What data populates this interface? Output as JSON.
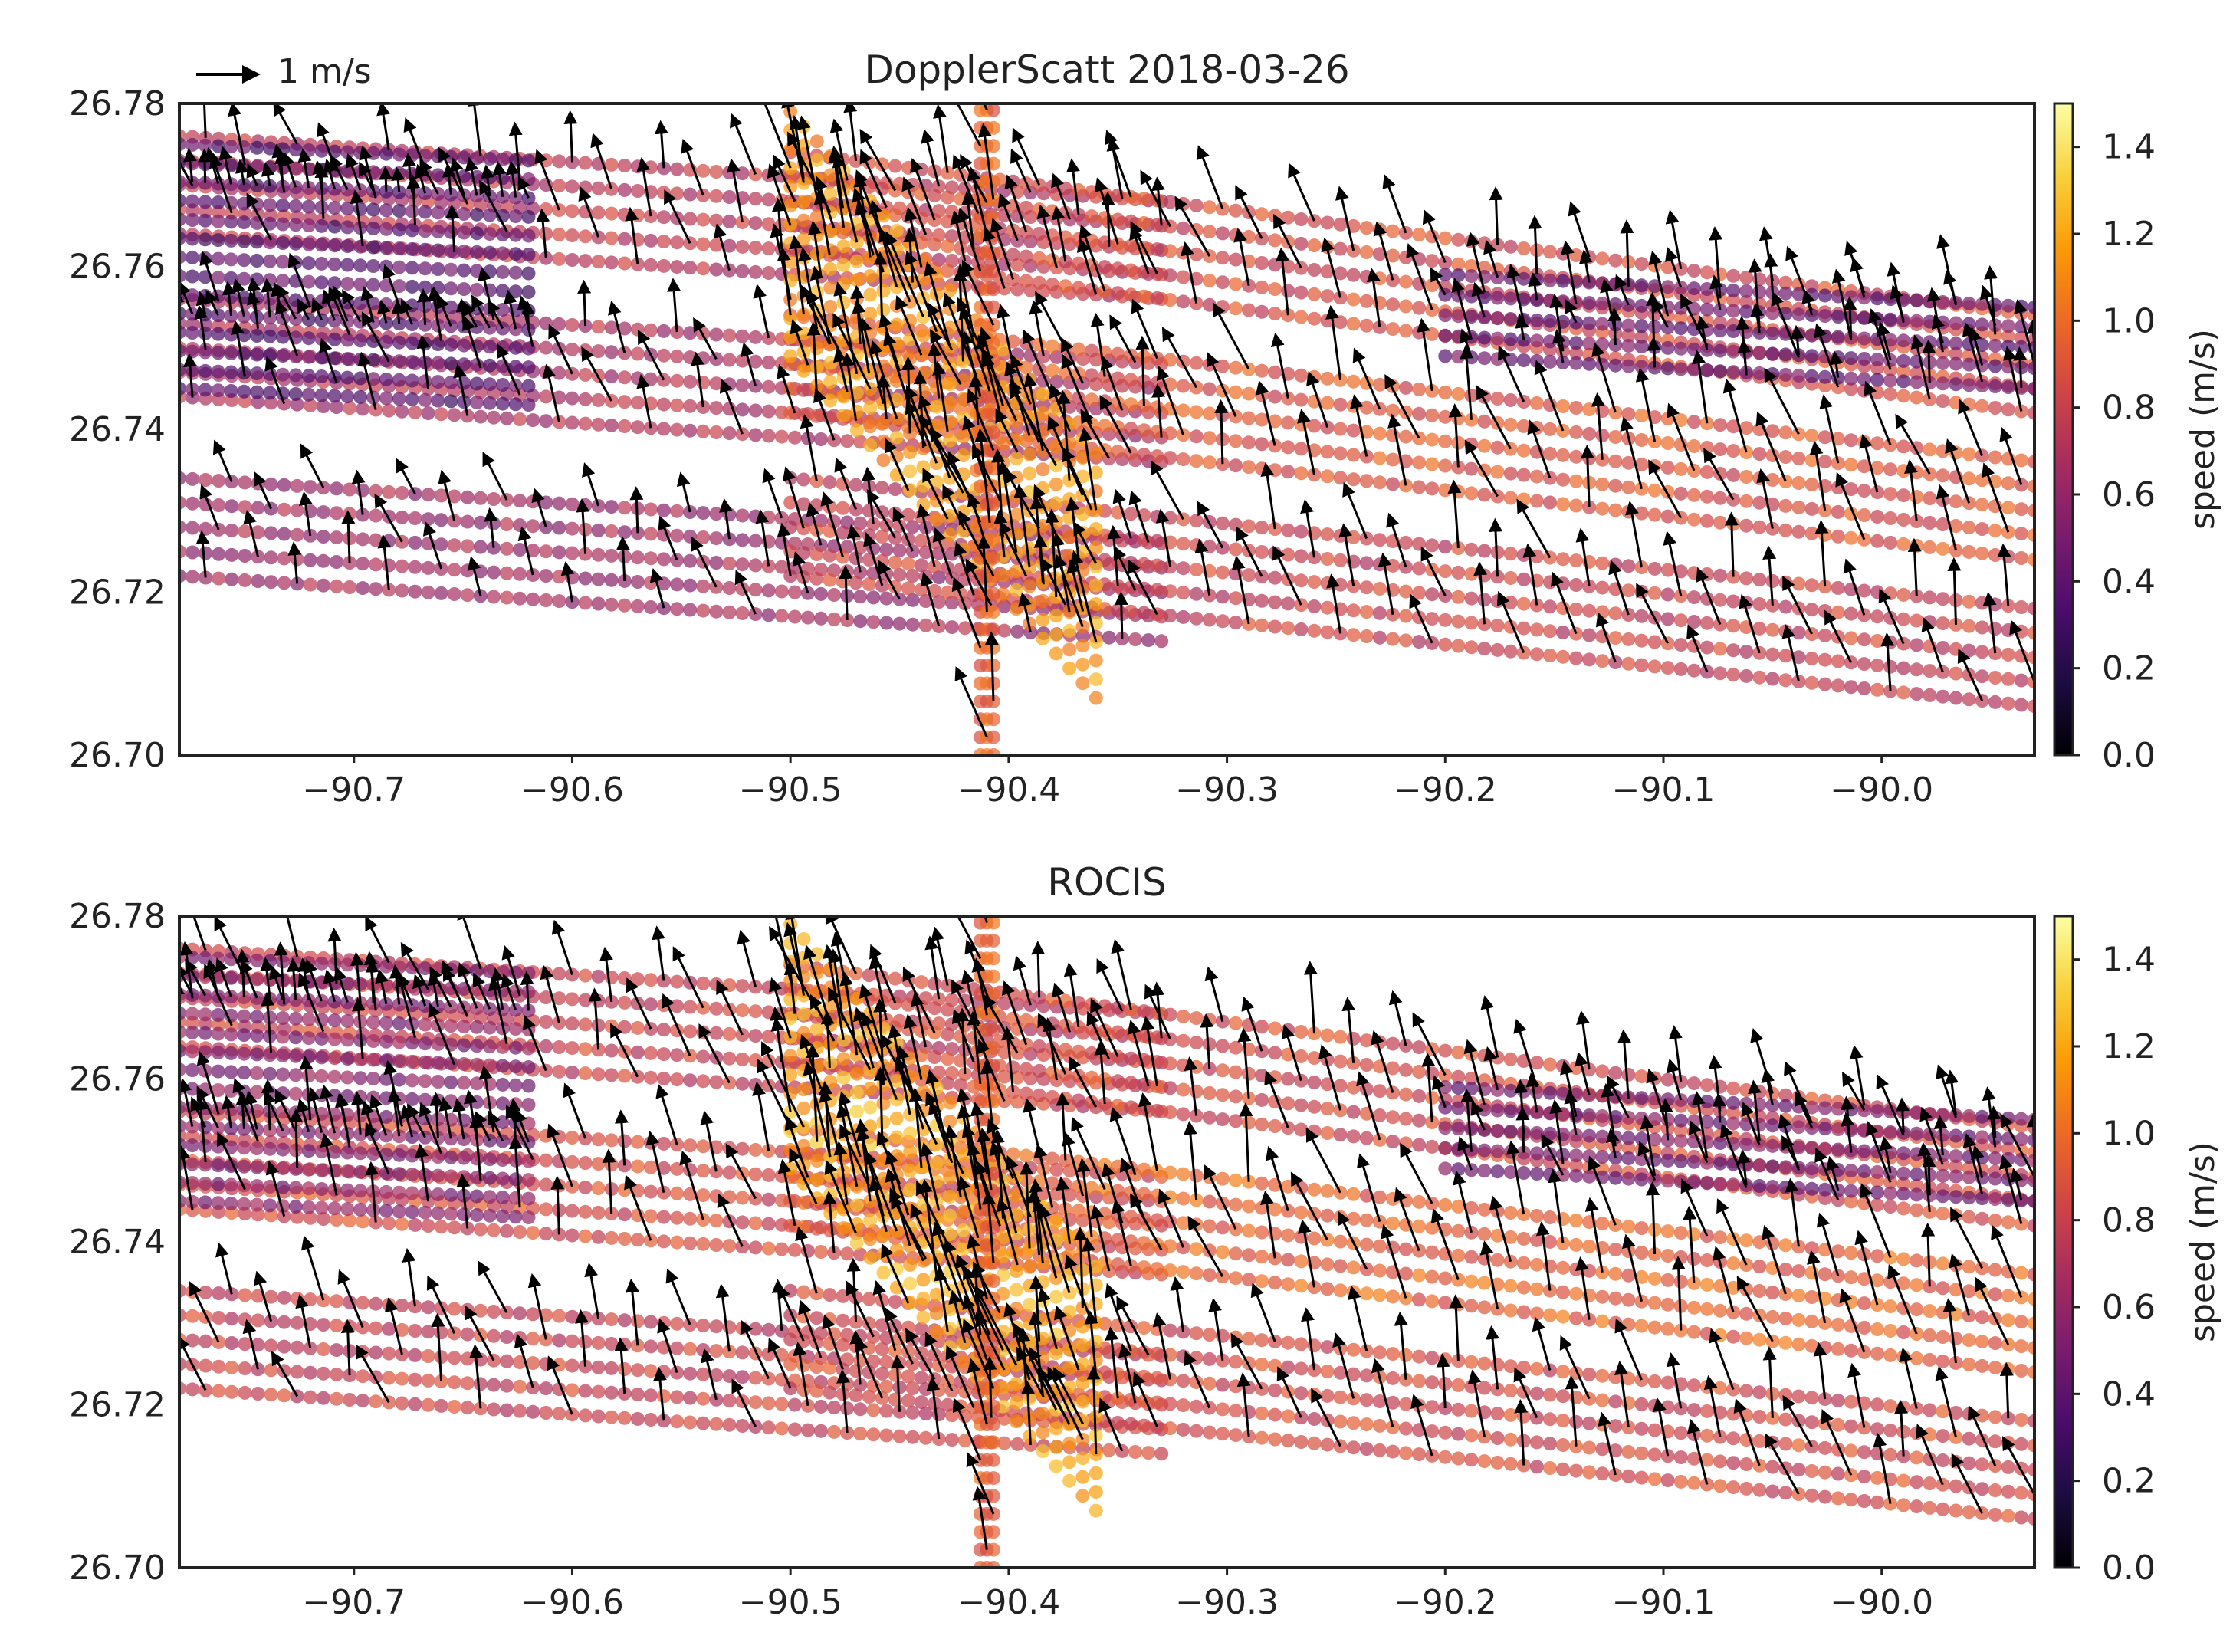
{
  "figure": {
    "quiver_key_label": "1 m/s",
    "colormap_stops": [
      "#000004",
      "#1b0c41",
      "#4a0c6b",
      "#781c6d",
      "#a52c60",
      "#cf4446",
      "#ed6925",
      "#fb9b06",
      "#f7d13d",
      "#fcffa4"
    ]
  },
  "chart_data": [
    {
      "type": "scatter",
      "subtype": "quiver",
      "title": "DopplerScatt  2018-03-26",
      "xlabel": "",
      "ylabel": "",
      "xlim": [
        -90.78,
        -89.93
      ],
      "ylim": [
        26.7,
        26.78
      ],
      "xticks": [
        -90.7,
        -90.6,
        -90.5,
        -90.4,
        -90.3,
        -90.2,
        -90.1,
        -90.0
      ],
      "xtick_labels": [
        "−90.7",
        "−90.6",
        "−90.5",
        "−90.4",
        "−90.3",
        "−90.2",
        "−90.1",
        "−90.0"
      ],
      "yticks": [
        26.7,
        26.72,
        26.74,
        26.76,
        26.78
      ],
      "ytick_labels": [
        "26.70",
        "26.72",
        "26.74",
        "26.76",
        "26.78"
      ],
      "colorbar": {
        "label": "speed (m/s)",
        "range": [
          0.0,
          1.5
        ],
        "ticks": [
          0.0,
          0.2,
          0.4,
          0.6,
          0.8,
          1.0,
          1.2,
          1.4
        ],
        "tick_labels": [
          "0.0",
          "0.2",
          "0.4",
          "0.6",
          "0.8",
          "1.0",
          "1.2",
          "1.4"
        ]
      },
      "swaths": [
        {
          "x0": -90.78,
          "x1": -90.33,
          "yc0": 26.77,
          "yc1": 26.762,
          "w": 0.012,
          "speed": 0.75
        },
        {
          "x0": -90.78,
          "x1": -90.33,
          "yc0": 26.75,
          "yc1": 26.742,
          "w": 0.012,
          "speed": 0.7
        },
        {
          "x0": -90.78,
          "x1": -90.33,
          "yc0": 26.728,
          "yc1": 26.72,
          "w": 0.012,
          "speed": 0.65
        },
        {
          "x0": -90.5,
          "x1": -89.93,
          "yc0": 26.768,
          "yc1": 26.748,
          "w": 0.012,
          "speed": 0.85
        },
        {
          "x0": -90.5,
          "x1": -89.93,
          "yc0": 26.748,
          "yc1": 26.73,
          "w": 0.012,
          "speed": 0.9
        },
        {
          "x0": -90.5,
          "x1": -89.93,
          "yc0": 26.728,
          "yc1": 26.712,
          "w": 0.012,
          "speed": 0.8
        },
        {
          "x0": -90.5,
          "x1": -90.36,
          "yc0": 26.764,
          "yc1": 26.722,
          "w": 0.03,
          "speed": 1.15
        },
        {
          "x0": -90.2,
          "x1": -89.93,
          "yc0": 26.754,
          "yc1": 26.75,
          "w": 0.01,
          "speed": 0.45
        },
        {
          "x0": -90.78,
          "x1": -90.62,
          "yc0": 26.76,
          "yc1": 26.758,
          "w": 0.03,
          "speed": 0.4
        }
      ],
      "track": {
        "x": -90.41,
        "y0": 26.7,
        "y1": 26.78,
        "w": 0.006,
        "speed": 0.95
      },
      "flow": {
        "mean_u": -0.22,
        "mean_v": 0.78,
        "scale_note": "1 m/s reference arrow"
      }
    },
    {
      "type": "scatter",
      "subtype": "quiver",
      "title": "ROCIS",
      "xlabel": "",
      "ylabel": "",
      "xlim": [
        -90.78,
        -89.93
      ],
      "ylim": [
        26.7,
        26.78
      ],
      "xticks": [
        -90.7,
        -90.6,
        -90.5,
        -90.4,
        -90.3,
        -90.2,
        -90.1,
        -90.0
      ],
      "xtick_labels": [
        "−90.7",
        "−90.6",
        "−90.5",
        "−90.4",
        "−90.3",
        "−90.2",
        "−90.1",
        "−90.0"
      ],
      "yticks": [
        26.7,
        26.72,
        26.74,
        26.76,
        26.78
      ],
      "ytick_labels": [
        "26.70",
        "26.72",
        "26.74",
        "26.76",
        "26.78"
      ],
      "colorbar": {
        "label": "speed (m/s)",
        "range": [
          0.0,
          1.5
        ],
        "ticks": [
          0.0,
          0.2,
          0.4,
          0.6,
          0.8,
          1.0,
          1.2,
          1.4
        ],
        "tick_labels": [
          "0.0",
          "0.2",
          "0.4",
          "0.6",
          "0.8",
          "1.0",
          "1.2",
          "1.4"
        ]
      },
      "swaths": [
        {
          "x0": -90.78,
          "x1": -90.33,
          "yc0": 26.77,
          "yc1": 26.762,
          "w": 0.012,
          "speed": 0.8
        },
        {
          "x0": -90.78,
          "x1": -90.33,
          "yc0": 26.75,
          "yc1": 26.742,
          "w": 0.012,
          "speed": 0.85
        },
        {
          "x0": -90.78,
          "x1": -90.33,
          "yc0": 26.728,
          "yc1": 26.72,
          "w": 0.012,
          "speed": 0.8
        },
        {
          "x0": -90.5,
          "x1": -89.93,
          "yc0": 26.768,
          "yc1": 26.748,
          "w": 0.012,
          "speed": 0.85
        },
        {
          "x0": -90.5,
          "x1": -89.93,
          "yc0": 26.748,
          "yc1": 26.73,
          "w": 0.012,
          "speed": 0.95
        },
        {
          "x0": -90.5,
          "x1": -89.93,
          "yc0": 26.728,
          "yc1": 26.712,
          "w": 0.012,
          "speed": 0.85
        },
        {
          "x0": -90.5,
          "x1": -90.36,
          "yc0": 26.764,
          "yc1": 26.722,
          "w": 0.03,
          "speed": 1.2
        },
        {
          "x0": -90.2,
          "x1": -89.93,
          "yc0": 26.754,
          "yc1": 26.75,
          "w": 0.01,
          "speed": 0.5
        },
        {
          "x0": -90.78,
          "x1": -90.62,
          "yc0": 26.76,
          "yc1": 26.758,
          "w": 0.03,
          "speed": 0.55
        }
      ],
      "track": {
        "x": -90.41,
        "y0": 26.7,
        "y1": 26.78,
        "w": 0.006,
        "speed": 0.95
      },
      "flow": {
        "mean_u": -0.22,
        "mean_v": 0.78,
        "scale_note": "1 m/s reference arrow"
      }
    }
  ]
}
